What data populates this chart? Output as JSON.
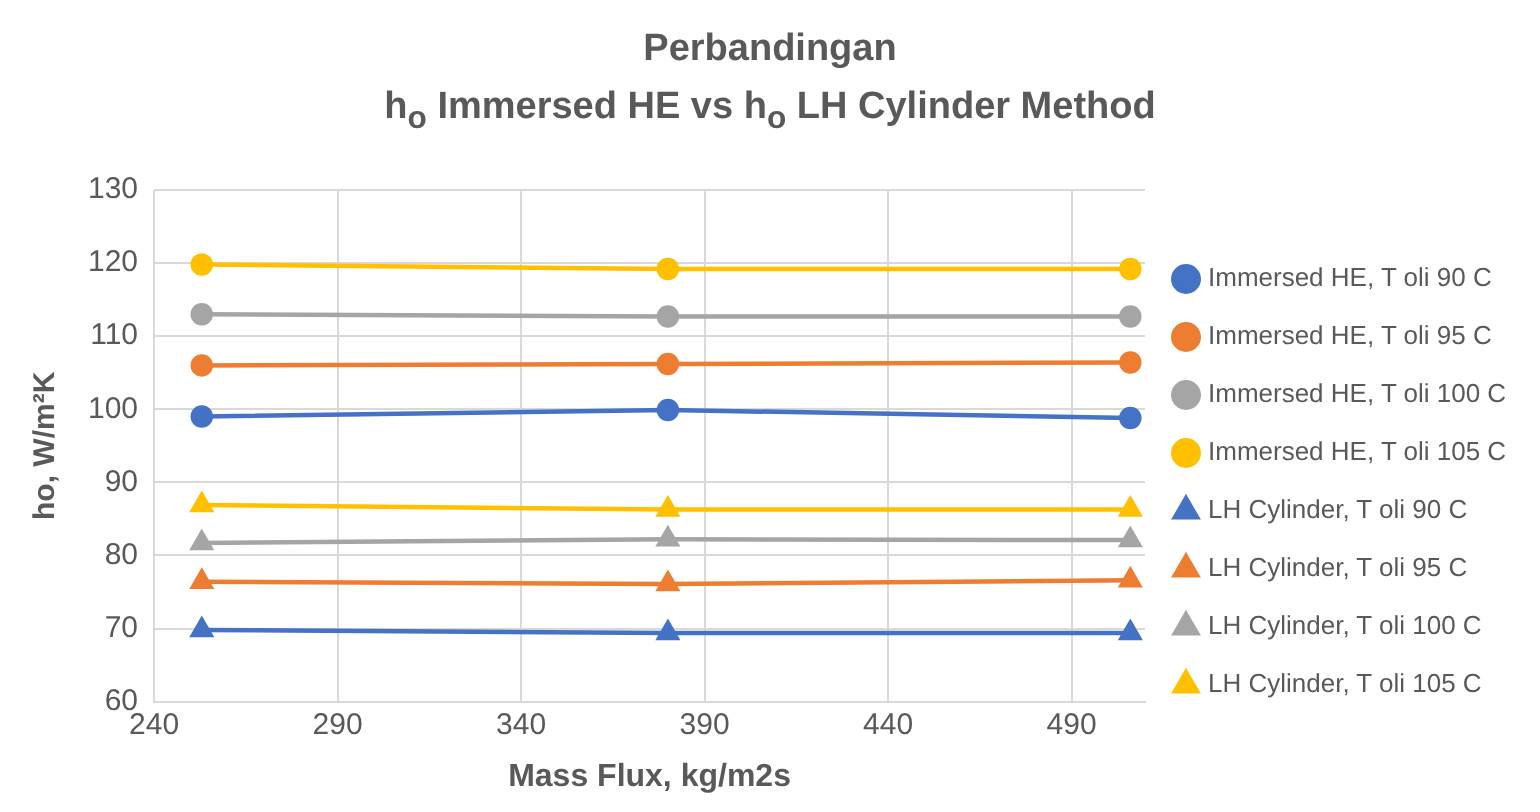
{
  "chart_data": {
    "type": "line",
    "title": "Perbandingan\nh$_{o}$ Immersed HE vs h$_{o}$ LH Cylinder Method",
    "xlabel": "Mass Flux, kg/m2s",
    "ylabel": "ho, W/m²K",
    "x": [
      253,
      380,
      506
    ],
    "xlim": [
      240,
      510
    ],
    "xticks": [
      240,
      290,
      340,
      390,
      440,
      490
    ],
    "ylim": [
      60,
      130
    ],
    "yticks": [
      60,
      70,
      80,
      90,
      100,
      110,
      120,
      130
    ],
    "grid": true,
    "legend": "right",
    "line_style": "solid",
    "series": [
      {
        "name": "Immersed HE, T oli 90 C",
        "color": "#4472c4",
        "marker": "circle",
        "values": [
          99,
          99.9,
          98.8
        ]
      },
      {
        "name": "Immersed HE, T oli 95 C",
        "color": "#ed7d31",
        "marker": "circle",
        "values": [
          106,
          106.2,
          106.4
        ]
      },
      {
        "name": "Immersed HE, T oli 100 C",
        "color": "#a5a5a5",
        "marker": "circle",
        "values": [
          113,
          112.7,
          112.7
        ]
      },
      {
        "name": "Immersed HE, T oli 105 C",
        "color": "#ffc000",
        "marker": "circle",
        "values": [
          119.8,
          119.2,
          119.2
        ]
      },
      {
        "name": "LH Cylinder, T oli 90 C",
        "color": "#4472c4",
        "marker": "triangle",
        "values": [
          69.8,
          69.4,
          69.4
        ]
      },
      {
        "name": "LH Cylinder, T oli 95 C",
        "color": "#ed7d31",
        "marker": "triangle",
        "values": [
          76.4,
          76.1,
          76.6
        ]
      },
      {
        "name": "LH Cylinder, T oli 100 C",
        "color": "#a5a5a5",
        "marker": "triangle",
        "values": [
          81.7,
          82.2,
          82.1
        ]
      },
      {
        "name": "LH Cylinder, T oli 105 C",
        "color": "#ffc000",
        "marker": "triangle",
        "values": [
          86.9,
          86.3,
          86.3
        ]
      }
    ]
  }
}
